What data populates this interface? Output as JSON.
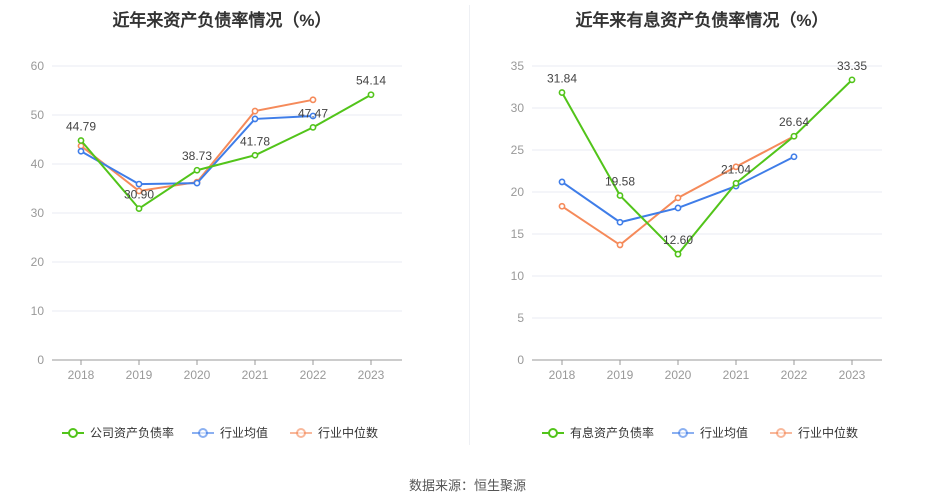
{
  "chart_data": [
    {
      "type": "line",
      "title": "近年来资产负债率情况（%）",
      "categories": [
        "2018",
        "2019",
        "2020",
        "2021",
        "2022",
        "2023"
      ],
      "ylim": [
        0,
        60
      ],
      "yticks": [
        0,
        10,
        20,
        30,
        40,
        50,
        60
      ],
      "grid": true,
      "legend_position": "bottom",
      "series": [
        {
          "name": "公司资产负债率",
          "color": "#52c41a",
          "values": [
            44.79,
            30.9,
            38.73,
            41.78,
            47.47,
            54.14
          ],
          "labels": [
            "44.79",
            "30.90",
            "38.73",
            "41.78",
            "47.47",
            "54.14"
          ]
        },
        {
          "name": "行业均值",
          "color": "#3f7de8",
          "values": [
            42.6,
            35.9,
            36.1,
            49.2,
            49.8,
            null
          ]
        },
        {
          "name": "行业中位数",
          "color": "#f58a5a",
          "values": [
            43.7,
            34.5,
            36.3,
            50.8,
            53.1,
            null
          ]
        }
      ]
    },
    {
      "type": "line",
      "title": "近年来有息资产负债率情况（%）",
      "categories": [
        "2018",
        "2019",
        "2020",
        "2021",
        "2022",
        "2023"
      ],
      "ylim": [
        0,
        35
      ],
      "yticks": [
        0,
        5,
        10,
        15,
        20,
        25,
        30,
        35
      ],
      "grid": true,
      "legend_position": "bottom",
      "series": [
        {
          "name": "有息资产负债率",
          "color": "#52c41a",
          "values": [
            31.84,
            19.58,
            12.6,
            21.04,
            26.64,
            33.35
          ],
          "labels": [
            "31.84",
            "19.58",
            "12.60",
            "21.04",
            "26.64",
            "33.35"
          ]
        },
        {
          "name": "行业均值",
          "color": "#3f7de8",
          "values": [
            21.2,
            16.4,
            18.1,
            20.7,
            24.2,
            null
          ]
        },
        {
          "name": "行业中位数",
          "color": "#f58a5a",
          "values": [
            18.3,
            13.7,
            19.3,
            23.0,
            26.64,
            null
          ]
        }
      ]
    }
  ],
  "source": "数据来源：恒生聚源"
}
